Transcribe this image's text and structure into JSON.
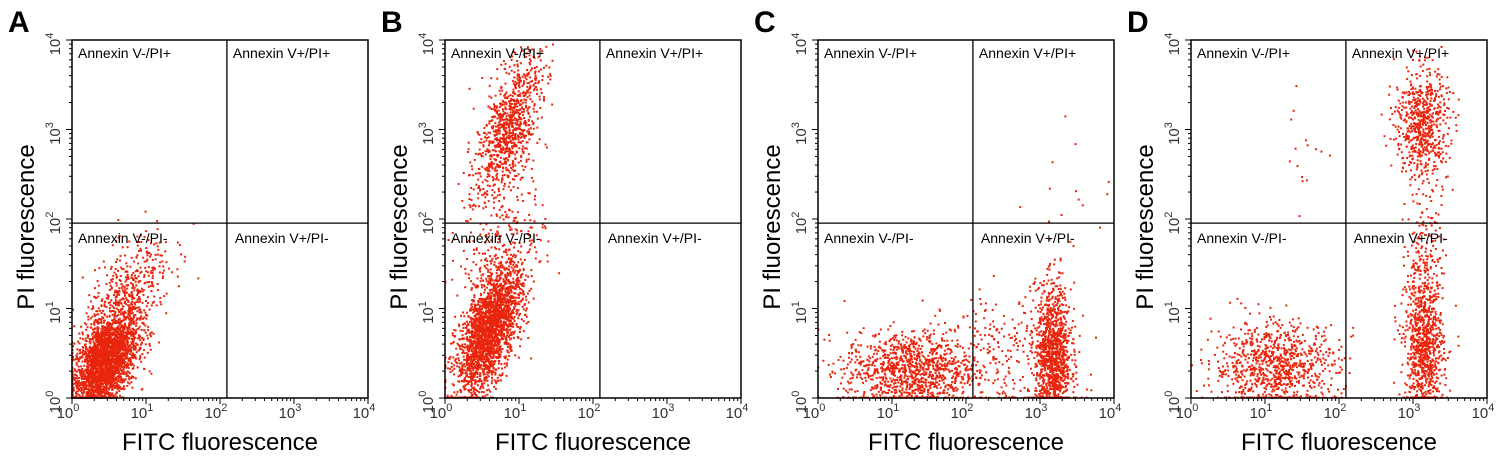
{
  "point_color": "#e8250d",
  "chart_data": [
    {
      "type": "scatter",
      "panel": "A",
      "xlabel": "FITC fluorescence",
      "ylabel": "PI fluorescence",
      "xscale": "log",
      "yscale": "log",
      "xlim": [
        1,
        10000
      ],
      "ylim": [
        1,
        10000
      ],
      "x_tick_labels": [
        {
          "base": "10",
          "exp": "0"
        },
        {
          "base": "10",
          "exp": "1"
        },
        {
          "base": "10",
          "exp": "2"
        },
        {
          "base": "10",
          "exp": "3"
        },
        {
          "base": "10",
          "exp": "4"
        }
      ],
      "y_tick_labels": [
        {
          "base": "10",
          "exp": "0"
        },
        {
          "base": "10",
          "exp": "1"
        },
        {
          "base": "10",
          "exp": "2"
        },
        {
          "base": "10",
          "exp": "3"
        },
        {
          "base": "10",
          "exp": "4"
        }
      ],
      "gate": {
        "x": 124,
        "y": 90
      },
      "quadrant_labels": {
        "upper_left": "Annexin V-/PI+",
        "upper_right": "Annexin V+/PI+",
        "lower_left": "Annexin V-/PI-",
        "lower_right": "Annexin V+/PI-"
      },
      "clusters": [
        {
          "log_x": 0.45,
          "log_y": 0.4,
          "sd_x": 0.22,
          "sd_y": 0.28,
          "n": 2600,
          "corr": 0.5
        },
        {
          "log_x": 0.75,
          "log_y": 1.15,
          "sd_x": 0.3,
          "sd_y": 0.35,
          "n": 450,
          "corr": 0.6
        }
      ]
    },
    {
      "type": "scatter",
      "panel": "B",
      "xlabel": "FITC fluorescence",
      "ylabel": "PI fluorescence",
      "xscale": "log",
      "yscale": "log",
      "xlim": [
        1,
        10000
      ],
      "ylim": [
        1,
        10000
      ],
      "x_tick_labels": [
        {
          "base": "10",
          "exp": "0"
        },
        {
          "base": "10",
          "exp": "1"
        },
        {
          "base": "10",
          "exp": "2"
        },
        {
          "base": "10",
          "exp": "3"
        },
        {
          "base": "10",
          "exp": "4"
        }
      ],
      "y_tick_labels": [
        {
          "base": "10",
          "exp": "0"
        },
        {
          "base": "10",
          "exp": "1"
        },
        {
          "base": "10",
          "exp": "2"
        },
        {
          "base": "10",
          "exp": "3"
        },
        {
          "base": "10",
          "exp": "4"
        }
      ],
      "gate": {
        "x": 124,
        "y": 90
      },
      "quadrant_labels": {
        "upper_left": "Annexin V-/PI+",
        "upper_right": "Annexin V+/PI+",
        "lower_left": "Annexin V-/PI-",
        "lower_right": "Annexin V+/PI-"
      },
      "clusters": [
        {
          "log_x": 0.6,
          "log_y": 0.75,
          "sd_x": 0.22,
          "sd_y": 0.35,
          "n": 2300,
          "corr": 0.6
        },
        {
          "log_x": 0.85,
          "log_y": 3.0,
          "sd_x": 0.22,
          "sd_y": 0.4,
          "n": 900,
          "corr": 0.6
        },
        {
          "log_x": 0.8,
          "log_y": 1.8,
          "sd_x": 0.3,
          "sd_y": 0.35,
          "n": 200,
          "corr": 0.3
        }
      ]
    },
    {
      "type": "scatter",
      "panel": "C",
      "xlabel": "FITC fluorescence",
      "ylabel": "PI fluorescence",
      "xscale": "log",
      "yscale": "log",
      "xlim": [
        1,
        10000
      ],
      "ylim": [
        1,
        10000
      ],
      "x_tick_labels": [
        {
          "base": "10",
          "exp": "0"
        },
        {
          "base": "10",
          "exp": "1"
        },
        {
          "base": "10",
          "exp": "2"
        },
        {
          "base": "10",
          "exp": "3"
        },
        {
          "base": "10",
          "exp": "4"
        }
      ],
      "y_tick_labels": [
        {
          "base": "10",
          "exp": "0"
        },
        {
          "base": "10",
          "exp": "1"
        },
        {
          "base": "10",
          "exp": "2"
        },
        {
          "base": "10",
          "exp": "3"
        },
        {
          "base": "10",
          "exp": "4"
        }
      ],
      "gate": {
        "x": 124,
        "y": 90
      },
      "quadrant_labels": {
        "upper_left": "Annexin V-/PI+",
        "upper_right": "Annexin V+/PI+",
        "lower_left": "Annexin V-/PI-",
        "lower_right": "Annexin V+/PI-"
      },
      "clusters": [
        {
          "log_x": 1.25,
          "log_y": 0.3,
          "sd_x": 0.45,
          "sd_y": 0.22,
          "n": 1100,
          "corr": 0
        },
        {
          "log_x": 3.18,
          "log_y": 0.45,
          "sd_x": 0.12,
          "sd_y": 0.4,
          "n": 1100,
          "corr": 0
        },
        {
          "log_x": 2.6,
          "log_y": 0.5,
          "sd_x": 0.45,
          "sd_y": 0.35,
          "n": 250,
          "corr": 0
        },
        {
          "log_x": 3.5,
          "log_y": 2.4,
          "sd_x": 0.3,
          "sd_y": 0.4,
          "n": 15,
          "corr": 0
        }
      ]
    },
    {
      "type": "scatter",
      "panel": "D",
      "xlabel": "FITC fluorescence",
      "ylabel": "PI fluorescence",
      "xscale": "log",
      "yscale": "log",
      "xlim": [
        1,
        10000
      ],
      "ylim": [
        1,
        10000
      ],
      "x_tick_labels": [
        {
          "base": "10",
          "exp": "0"
        },
        {
          "base": "10",
          "exp": "1"
        },
        {
          "base": "10",
          "exp": "2"
        },
        {
          "base": "10",
          "exp": "3"
        },
        {
          "base": "10",
          "exp": "4"
        }
      ],
      "y_tick_labels": [
        {
          "base": "10",
          "exp": "0"
        },
        {
          "base": "10",
          "exp": "1"
        },
        {
          "base": "10",
          "exp": "2"
        },
        {
          "base": "10",
          "exp": "3"
        },
        {
          "base": "10",
          "exp": "4"
        }
      ],
      "gate": {
        "x": 124,
        "y": 90
      },
      "quadrant_labels": {
        "upper_left": "Annexin V-/PI+",
        "upper_right": "Annexin V+/PI+",
        "lower_left": "Annexin V-/PI-",
        "lower_right": "Annexin V+/PI-"
      },
      "clusters": [
        {
          "log_x": 1.15,
          "log_y": 0.35,
          "sd_x": 0.42,
          "sd_y": 0.25,
          "n": 900,
          "corr": 0
        },
        {
          "log_x": 3.15,
          "log_y": 0.55,
          "sd_x": 0.13,
          "sd_y": 0.4,
          "n": 900,
          "corr": 0
        },
        {
          "log_x": 3.12,
          "log_y": 3.05,
          "sd_x": 0.18,
          "sd_y": 0.32,
          "n": 650,
          "corr": 0
        },
        {
          "log_x": 3.15,
          "log_y": 1.6,
          "sd_x": 0.12,
          "sd_y": 0.35,
          "n": 150,
          "corr": 0
        },
        {
          "log_x": 1.6,
          "log_y": 2.8,
          "sd_x": 0.15,
          "sd_y": 0.3,
          "n": 15,
          "corr": 0
        }
      ]
    }
  ]
}
